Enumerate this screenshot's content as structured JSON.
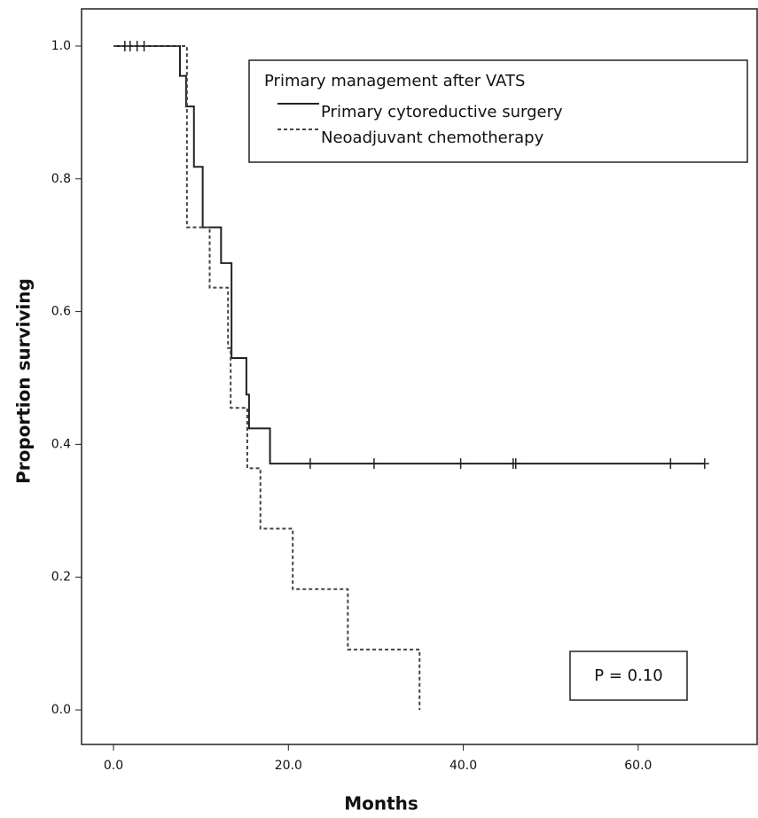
{
  "chart_data": {
    "type": "km",
    "xlabel": "Months",
    "ylabel": "Proportion surviving",
    "legend_title": "Primary management after VATS",
    "annotation": "P = 0.10",
    "xlim": [
      -3.65,
      73.6
    ],
    "ylim": [
      -0.052,
      1.056
    ],
    "xticks": [
      {
        "value": 0,
        "label": "0.0"
      },
      {
        "value": 20,
        "label": "20.0"
      },
      {
        "value": 40,
        "label": "40.0"
      },
      {
        "value": 60,
        "label": "60.0"
      }
    ],
    "yticks": [
      {
        "value": 0,
        "label": "0.0"
      },
      0.2,
      0.4,
      0.6,
      0.8,
      {
        "value": 1,
        "label": "1.0"
      }
    ],
    "series": [
      {
        "name": "Primary cytoreductive surgery",
        "color": "#222222",
        "dash": "solid",
        "x": [
          0,
          7.6,
          8.3,
          9.2,
          10.2,
          12.3,
          13.5,
          15.2,
          15.5,
          17.9,
          67.6
        ],
        "values": [
          1.0,
          0.955,
          0.909,
          0.818,
          0.727,
          0.673,
          0.53,
          0.475,
          0.424,
          0.371,
          0.371
        ],
        "censored_x": [
          1.3,
          1.9,
          2.7,
          3.5,
          22.5,
          29.8,
          39.7,
          45.7,
          46.0,
          63.7,
          67.6
        ]
      },
      {
        "name": "Neoadjuvant chemotherapy",
        "color": "#444444",
        "dash": "dashed",
        "x": [
          0,
          8.4,
          11.0,
          13.1,
          13.4,
          15.3,
          16.8,
          20.5,
          26.8,
          35.0
        ],
        "values": [
          1.0,
          0.727,
          0.636,
          0.545,
          0.455,
          0.364,
          0.273,
          0.182,
          0.091,
          0.0
        ],
        "censored_x": []
      }
    ]
  }
}
